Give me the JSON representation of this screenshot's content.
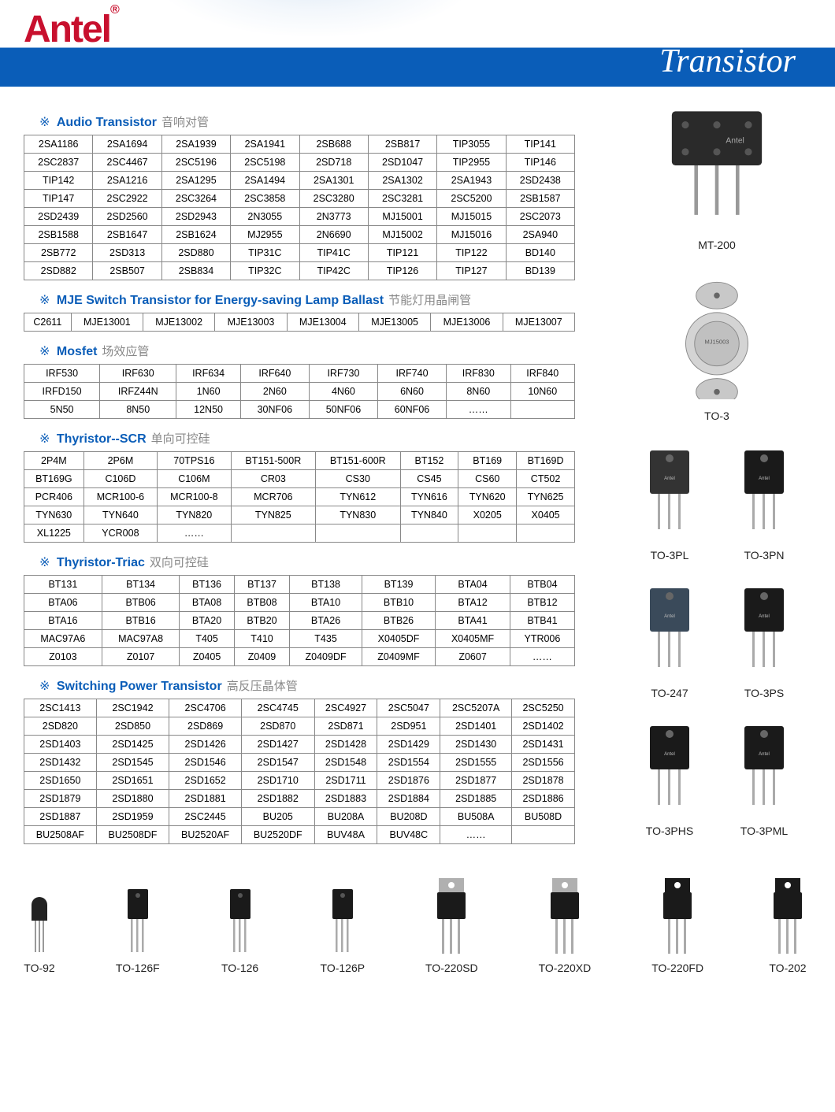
{
  "header": {
    "logo": "Antel",
    "logo_mark": "®",
    "title": "Transistor",
    "logo_color": "#c8102e",
    "bar_color": "#0a5db8"
  },
  "sections": [
    {
      "mark": "※",
      "title_en": "Audio Transistor",
      "title_cn": "音响对管",
      "cols": 8,
      "rows": [
        [
          "2SA1186",
          "2SA1694",
          "2SA1939",
          "2SA1941",
          "2SB688",
          "2SB817",
          "TIP3055",
          "TIP141"
        ],
        [
          "2SC2837",
          "2SC4467",
          "2SC5196",
          "2SC5198",
          "2SD718",
          "2SD1047",
          "TIP2955",
          "TIP146"
        ],
        [
          "TIP142",
          "2SA1216",
          "2SA1295",
          "2SA1494",
          "2SA1301",
          "2SA1302",
          "2SA1943",
          "2SD2438"
        ],
        [
          "TIP147",
          "2SC2922",
          "2SC3264",
          "2SC3858",
          "2SC3280",
          "2SC3281",
          "2SC5200",
          "2SB1587"
        ],
        [
          "2SD2439",
          "2SD2560",
          "2SD2943",
          "2N3055",
          "2N3773",
          "MJ15001",
          "MJ15015",
          "2SC2073"
        ],
        [
          "2SB1588",
          "2SB1647",
          "2SB1624",
          "MJ2955",
          "2N6690",
          "MJ15002",
          "MJ15016",
          "2SA940"
        ],
        [
          "2SB772",
          "2SD313",
          "2SD880",
          "TIP31C",
          "TIP41C",
          "TIP121",
          "TIP122",
          "BD140"
        ],
        [
          "2SD882",
          "2SB507",
          "2SB834",
          "TIP32C",
          "TIP42C",
          "TIP126",
          "TIP127",
          "BD139"
        ]
      ]
    },
    {
      "mark": "※",
      "title_en": "MJE Switch Transistor for Energy-saving Lamp Ballast",
      "title_cn": "节能灯用晶闸管",
      "cols": 8,
      "rows": [
        [
          "C2611",
          "MJE13001",
          "MJE13002",
          "MJE13003",
          "MJE13004",
          "MJE13005",
          "MJE13006",
          "MJE13007"
        ]
      ]
    },
    {
      "mark": "※",
      "title_en": "Mosfet",
      "title_cn": "场效应管",
      "cols": 8,
      "rows": [
        [
          "IRF530",
          "IRF630",
          "IRF634",
          "IRF640",
          "IRF730",
          "IRF740",
          "IRF830",
          "IRF840"
        ],
        [
          "IRFD150",
          "IRFZ44N",
          "1N60",
          "2N60",
          "4N60",
          "6N60",
          "8N60",
          "10N60"
        ],
        [
          "5N50",
          "8N50",
          "12N50",
          "30NF06",
          "50NF06",
          "60NF06",
          "……",
          ""
        ]
      ]
    },
    {
      "mark": "※",
      "title_en": "Thyristor--SCR",
      "title_cn": "单向可控硅",
      "cols": 8,
      "rows": [
        [
          "2P4M",
          "2P6M",
          "70TPS16",
          "BT151-500R",
          "BT151-600R",
          "BT152",
          "BT169",
          "BT169D"
        ],
        [
          "BT169G",
          "C106D",
          "C106M",
          "CR03",
          "CS30",
          "CS45",
          "CS60",
          "CT502"
        ],
        [
          "PCR406",
          "MCR100-6",
          "MCR100-8",
          "MCR706",
          "TYN612",
          "TYN616",
          "TYN620",
          "TYN625"
        ],
        [
          "TYN630",
          "TYN640",
          "TYN820",
          "TYN825",
          "TYN830",
          "TYN840",
          "X0205",
          "X0405"
        ],
        [
          "XL1225",
          "YCR008",
          "……",
          "",
          "",
          "",
          "",
          ""
        ]
      ]
    },
    {
      "mark": "※",
      "title_en": "Thyristor-Triac",
      "title_cn": "双向可控硅",
      "cols": 8,
      "rows": [
        [
          "BT131",
          "BT134",
          "BT136",
          "BT137",
          "BT138",
          "BT139",
          "BTA04",
          "BTB04"
        ],
        [
          "BTA06",
          "BTB06",
          "BTA08",
          "BTB08",
          "BTA10",
          "BTB10",
          "BTA12",
          "BTB12"
        ],
        [
          "BTA16",
          "BTB16",
          "BTA20",
          "BTB20",
          "BTA26",
          "BTB26",
          "BTA41",
          "BTB41"
        ],
        [
          "MAC97A6",
          "MAC97A8",
          "T405",
          "T410",
          "T435",
          "X0405DF",
          "X0405MF",
          "YTR006"
        ],
        [
          "Z0103",
          "Z0107",
          "Z0405",
          "Z0409",
          "Z0409DF",
          "Z0409MF",
          "Z0607",
          "……"
        ]
      ]
    },
    {
      "mark": "※",
      "title_en": "Switching Power Transistor",
      "title_cn": "高反压晶体管",
      "cols": 8,
      "rows": [
        [
          "2SC1413",
          "2SC1942",
          "2SC4706",
          "2SC4745",
          "2SC4927",
          "2SC5047",
          "2SC5207A",
          "2SC5250"
        ],
        [
          "2SD820",
          "2SD850",
          "2SD869",
          "2SD870",
          "2SD871",
          "2SD951",
          "2SD1401",
          "2SD1402"
        ],
        [
          "2SD1403",
          "2SD1425",
          "2SD1426",
          "2SD1427",
          "2SD1428",
          "2SD1429",
          "2SD1430",
          "2SD1431"
        ],
        [
          "2SD1432",
          "2SD1545",
          "2SD1546",
          "2SD1547",
          "2SD1548",
          "2SD1554",
          "2SD1555",
          "2SD1556"
        ],
        [
          "2SD1650",
          "2SD1651",
          "2SD1652",
          "2SD1710",
          "2SD1711",
          "2SD1876",
          "2SD1877",
          "2SD1878"
        ],
        [
          "2SD1879",
          "2SD1880",
          "2SD1881",
          "2SD1882",
          "2SD1883",
          "2SD1884",
          "2SD1885",
          "2SD1886"
        ],
        [
          "2SD1887",
          "2SD1959",
          "2SC2445",
          "BU205",
          "BU208A",
          "BU208D",
          "BU508A",
          "BU508D"
        ],
        [
          "BU2508AF",
          "BU2508DF",
          "BU2520AF",
          "BU2520DF",
          "BUV48A",
          "BUV48C",
          "……",
          ""
        ]
      ]
    }
  ],
  "side_packages": [
    {
      "label": "MT-200",
      "type": "mt200"
    },
    {
      "label": "TO-3",
      "type": "to3"
    }
  ],
  "side_pairs": [
    {
      "labels": [
        "TO-3PL",
        "TO-3PN"
      ],
      "types": [
        "to3p",
        "to3p_dark"
      ]
    },
    {
      "labels": [
        "TO-247",
        "TO-3PS"
      ],
      "types": [
        "to247",
        "to3p_dark"
      ]
    },
    {
      "labels": [
        "TO-3PHS",
        "TO-3PML"
      ],
      "types": [
        "to3p_dark",
        "to3p_dark"
      ]
    }
  ],
  "bottom_packages": [
    {
      "label": "TO-92",
      "type": "to92"
    },
    {
      "label": "TO-126F",
      "type": "to126"
    },
    {
      "label": "TO-126",
      "type": "to126"
    },
    {
      "label": "TO-126P",
      "type": "to126"
    },
    {
      "label": "TO-220SD",
      "type": "to220"
    },
    {
      "label": "TO-220XD",
      "type": "to220"
    },
    {
      "label": "TO-220FD",
      "type": "to220b"
    },
    {
      "label": "TO-202",
      "type": "to220b"
    }
  ],
  "colors": {
    "section_title": "#0a5db8",
    "section_cn": "#888888",
    "table_border": "#888888",
    "table_text": "#000000"
  }
}
